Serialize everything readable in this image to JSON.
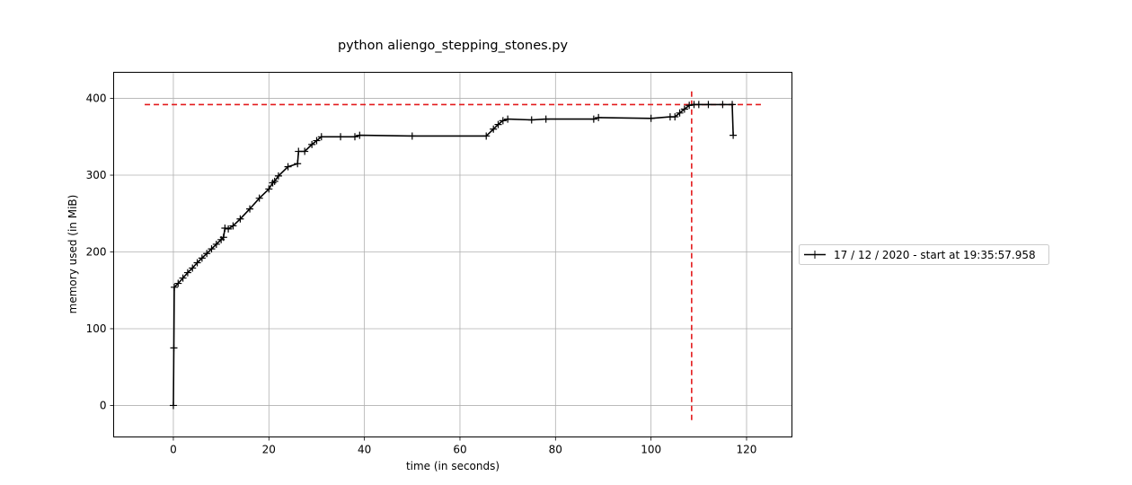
{
  "chart_data": {
    "type": "line",
    "title": "python aliengo_stepping_stones.py",
    "xlabel": "time (in seconds)",
    "ylabel": "memory used (in MiB)",
    "xlim": [
      -12.5,
      129.5
    ],
    "ylim": [
      -41,
      434
    ],
    "xticks": [
      0,
      20,
      40,
      60,
      80,
      100,
      120
    ],
    "yticks": [
      0,
      100,
      200,
      300,
      400
    ],
    "grid": true,
    "legend": {
      "placement": "outside-right",
      "entries": [
        "17 / 12 / 2020 - start at 19:35:57.958"
      ]
    },
    "series": [
      {
        "name": "17 / 12 / 2020 - start at 19:35:57.958",
        "color": "#000000",
        "marker": "plus",
        "x": [
          0,
          0.1,
          0.2,
          1,
          2,
          3,
          4,
          5,
          6,
          7,
          8,
          9,
          10,
          10.5,
          10.8,
          11.5,
          12.5,
          14,
          16,
          18,
          20,
          20.8,
          21.2,
          22,
          24,
          26,
          26.2,
          27.5,
          29,
          30,
          31,
          35,
          38,
          39,
          50,
          65.5,
          67,
          68,
          69,
          70,
          75,
          78,
          88,
          89,
          100,
          104,
          105,
          106,
          107,
          108,
          109,
          110,
          112,
          115,
          117,
          117.2
        ],
        "y": [
          0,
          75,
          154,
          159,
          166,
          173,
          179,
          186,
          192,
          198,
          204,
          210,
          216,
          219,
          231,
          230,
          234,
          243,
          256,
          270,
          282,
          290,
          292,
          299,
          311,
          315,
          331,
          331,
          340,
          345,
          350,
          350,
          350,
          352,
          351,
          351,
          360,
          366,
          371,
          373,
          372,
          373,
          373,
          375,
          374,
          376,
          376,
          381,
          386,
          391,
          392,
          392,
          392,
          392,
          392,
          352
        ]
      }
    ],
    "reference_lines": {
      "color": "#e31a1c",
      "style": "dashed",
      "horizontal": {
        "y": 392,
        "x_from": -6,
        "x_to": 123
      },
      "vertical": {
        "x": 108.5,
        "y_from": -19,
        "y_to": 412
      }
    }
  }
}
